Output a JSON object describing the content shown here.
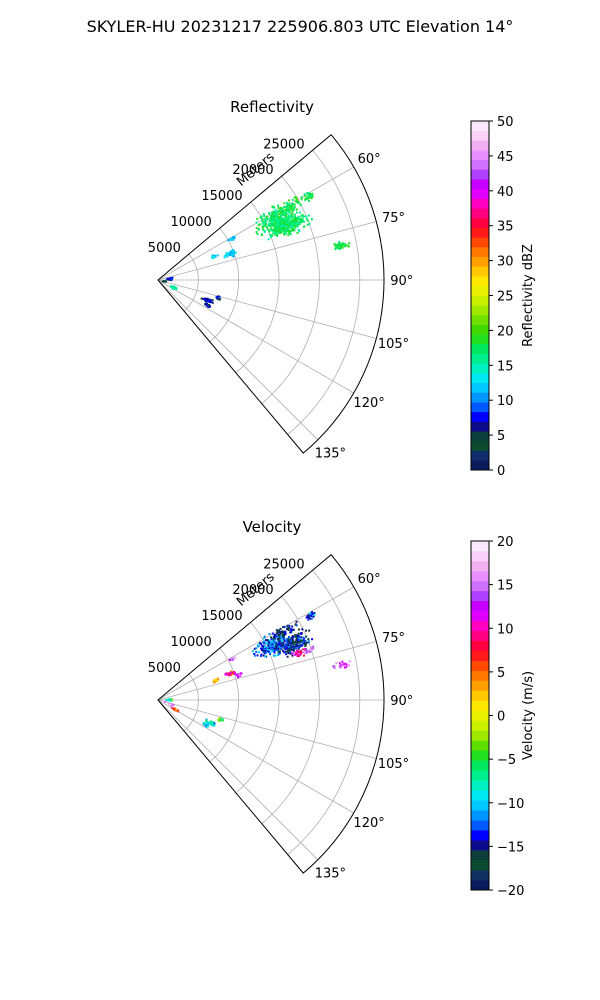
{
  "figure_title": "SKYLER-HU  20231217  225906.803 UTC Elevation 14°",
  "chart_data": [
    {
      "type": "polar-sector",
      "title": "Reflectivity",
      "radial_label": "Meters",
      "theta_range_deg": [
        50,
        140
      ],
      "theta_zero": "north",
      "theta_direction": "clockwise",
      "r_range": [
        0,
        28000
      ],
      "r_ticks": [
        5000,
        10000,
        15000,
        20000,
        25000
      ],
      "r_tick_labels": [
        "5000",
        "10000",
        "15000",
        "20000",
        "25000"
      ],
      "theta_ticks": [
        60,
        75,
        90,
        105,
        120,
        135
      ],
      "theta_tick_labels": [
        "60°",
        "75°",
        "90°",
        "105°",
        "120°",
        "135°"
      ],
      "grid": true,
      "colorbar": {
        "label": "Reflectivity dBZ",
        "min": 0,
        "max": 50,
        "ticks": [
          0,
          5,
          10,
          15,
          20,
          25,
          30,
          35,
          40,
          45,
          50
        ],
        "tick_labels": [
          "0",
          "5",
          "10",
          "15",
          "20",
          "25",
          "30",
          "35",
          "40",
          "45",
          "50"
        ]
      },
      "echo_regions": [
        {
          "az": 63,
          "r": 16500,
          "daz": 7,
          "dr": 4000,
          "value": 17,
          "n": 260
        },
        {
          "az": 67,
          "r": 17500,
          "daz": 5,
          "dr": 3500,
          "value": 17,
          "n": 220
        },
        {
          "az": 60,
          "r": 18500,
          "daz": 3,
          "dr": 2500,
          "value": 18,
          "n": 60
        },
        {
          "az": 60.5,
          "r": 21500,
          "daz": 2,
          "dr": 1000,
          "value": 17,
          "n": 25
        },
        {
          "az": 79,
          "r": 23000,
          "daz": 1.5,
          "dr": 1400,
          "value": 18,
          "n": 35
        },
        {
          "az": 60,
          "r": 10500,
          "daz": 1.5,
          "dr": 700,
          "value": 12,
          "n": 15
        },
        {
          "az": 69,
          "r": 9500,
          "daz": 3,
          "dr": 1200,
          "value": 12,
          "n": 45
        },
        {
          "az": 66,
          "r": 7500,
          "daz": 2,
          "dr": 600,
          "value": 12,
          "n": 20
        },
        {
          "az": 106,
          "r": 7700,
          "daz": 2,
          "dr": 500,
          "value": 7,
          "n": 25
        },
        {
          "az": 112,
          "r": 6500,
          "daz": 3,
          "dr": 900,
          "value": 6,
          "n": 45
        },
        {
          "az": 117,
          "r": 6800,
          "daz": 2,
          "dr": 500,
          "value": 6,
          "n": 20
        },
        {
          "az": 114,
          "r": 2000,
          "daz": 6,
          "dr": 600,
          "value": 15,
          "n": 40
        },
        {
          "az": 80,
          "r": 1400,
          "daz": 8,
          "dr": 500,
          "value": 7,
          "n": 30
        },
        {
          "az": 95,
          "r": 700,
          "daz": 4,
          "dr": 300,
          "value": 5,
          "n": 12
        }
      ]
    },
    {
      "type": "polar-sector",
      "title": "Velocity",
      "radial_label": "Meters",
      "theta_range_deg": [
        50,
        140
      ],
      "theta_zero": "north",
      "theta_direction": "clockwise",
      "r_range": [
        0,
        28000
      ],
      "r_ticks": [
        5000,
        10000,
        15000,
        20000,
        25000
      ],
      "r_tick_labels": [
        "5000",
        "10000",
        "15000",
        "20000",
        "25000"
      ],
      "theta_ticks": [
        60,
        75,
        90,
        105,
        120,
        135
      ],
      "theta_tick_labels": [
        "60°",
        "75°",
        "90°",
        "105°",
        "120°",
        "135°"
      ],
      "grid": true,
      "colorbar": {
        "label": "Velocity (m/s)",
        "min": -20,
        "max": 20,
        "ticks": [
          -20,
          -15,
          -10,
          -5,
          0,
          5,
          10,
          15,
          20
        ],
        "tick_labels": [
          "−20",
          "−15",
          "−10",
          "−5",
          "0",
          "5",
          "10",
          "15",
          "20"
        ]
      },
      "echo_regions": [
        {
          "az": 64,
          "r": 15500,
          "daz": 6,
          "dr": 3000,
          "value": -12,
          "n": 200
        },
        {
          "az": 67,
          "r": 18000,
          "daz": 5,
          "dr": 3000,
          "value": -15,
          "n": 200
        },
        {
          "az": 61,
          "r": 18000,
          "daz": 3,
          "dr": 2500,
          "value": -16,
          "n": 60
        },
        {
          "az": 60.5,
          "r": 21500,
          "daz": 2,
          "dr": 1000,
          "value": -12,
          "n": 25
        },
        {
          "az": 71,
          "r": 18500,
          "daz": 2,
          "dr": 1500,
          "value": 10,
          "n": 35
        },
        {
          "az": 71.5,
          "r": 19500,
          "daz": 1.5,
          "dr": 1000,
          "value": 16,
          "n": 25
        },
        {
          "az": 79,
          "r": 23000,
          "daz": 1.5,
          "dr": 1400,
          "value": 15,
          "n": 35
        },
        {
          "az": 60,
          "r": 10500,
          "daz": 1.5,
          "dr": 600,
          "value": 15,
          "n": 12
        },
        {
          "az": 69,
          "r": 9500,
          "daz": 2,
          "dr": 900,
          "value": 8,
          "n": 40
        },
        {
          "az": 72,
          "r": 10300,
          "daz": 1.5,
          "dr": 600,
          "value": 14,
          "n": 20
        },
        {
          "az": 70,
          "r": 7500,
          "daz": 2,
          "dr": 600,
          "value": 2,
          "n": 25
        },
        {
          "az": 107,
          "r": 8000,
          "daz": 2,
          "dr": 500,
          "value": -5,
          "n": 25
        },
        {
          "az": 113,
          "r": 7000,
          "daz": 3,
          "dr": 900,
          "value": -9,
          "n": 40
        },
        {
          "az": 117,
          "r": 6500,
          "daz": 2,
          "dr": 500,
          "value": -11,
          "n": 20
        },
        {
          "az": 118,
          "r": 2300,
          "daz": 4,
          "dr": 600,
          "value": 6,
          "n": 30
        },
        {
          "az": 108,
          "r": 1600,
          "daz": 4,
          "dr": 500,
          "value": 16,
          "n": 25
        },
        {
          "az": 84,
          "r": 1300,
          "daz": 6,
          "dr": 500,
          "value": -7,
          "n": 20
        },
        {
          "az": 96,
          "r": 700,
          "daz": 4,
          "dr": 300,
          "value": 17,
          "n": 12
        }
      ]
    }
  ]
}
